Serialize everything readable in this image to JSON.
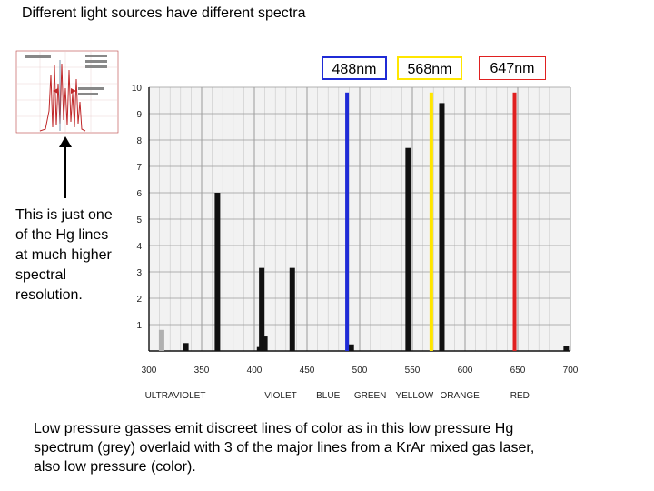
{
  "title": "Different light sources have different spectra",
  "laser_tags": [
    {
      "label": "488nm",
      "color": "#1f2bd6"
    },
    {
      "label": "568nm",
      "color": "#ffe600"
    },
    {
      "label": "647nm",
      "color": "#e02020"
    }
  ],
  "note": [
    "This is just one",
    "of the Hg lines",
    "at much higher",
    "spectral",
    "resolution."
  ],
  "caption": [
    "Low pressure gasses emit discreet lines of color as in this low pressure Hg",
    "spectrum (grey) overlaid with 3 of  the major lines from a KrAr mixed gas laser,",
    "also low pressure (color)."
  ],
  "chart_data": {
    "type": "bar",
    "xlim": [
      300,
      700
    ],
    "ylim": [
      0,
      10
    ],
    "x_ticks": [
      "300",
      "350",
      "400",
      "450",
      "500",
      "550",
      "600",
      "650",
      "700"
    ],
    "y_ticks": [
      "1",
      "2",
      "3",
      "4",
      "5",
      "6",
      "7",
      "8",
      "9",
      "10"
    ],
    "bands": [
      "ULTRAVIOLET",
      "VIOLET",
      "BLUE",
      "GREEN",
      "YELLOW",
      "ORANGE",
      "RED"
    ],
    "grid": true,
    "series": [
      {
        "x": [
          312,
          335,
          365,
          405,
          407,
          410,
          436,
          546,
          578
        ],
        "y": [
          0.8,
          0.3,
          6.0,
          0.15,
          3.15,
          0.55,
          3.15,
          7.7,
          9.4
        ],
        "color": "#111111"
      },
      {
        "x": [
          492,
          696
        ],
        "y": [
          0.25,
          0.2
        ],
        "color": "#111111"
      },
      {
        "x": [
          488,
          568,
          647
        ],
        "y": [
          9.8,
          9.8,
          9.8
        ],
        "color": [
          "#1f2bd6",
          "#ffe600",
          "#e02020"
        ]
      }
    ]
  }
}
